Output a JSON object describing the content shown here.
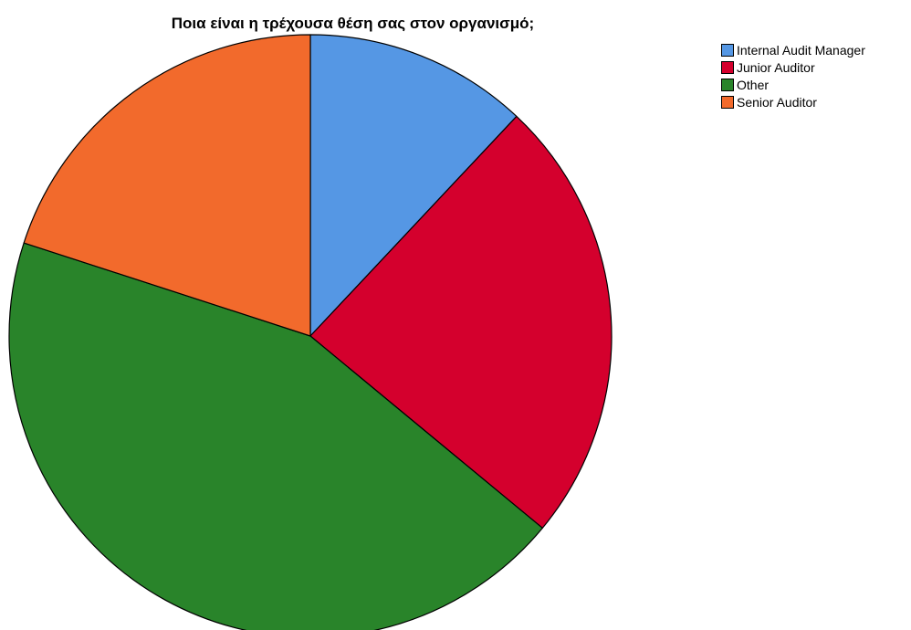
{
  "chart_data": {
    "type": "pie",
    "title": "Ποια είναι η τρέχουσα θέση σας στον οργανισμό;",
    "categories": [
      "Internal Audit Manager",
      "Junior Auditor",
      "Other",
      "Senior Auditor"
    ],
    "values": [
      12,
      24,
      44,
      20
    ],
    "colors": [
      "#5597e4",
      "#d4002d",
      "#29842a",
      "#f26a2c"
    ],
    "legend_position": "right",
    "start": "top",
    "direction": "clockwise"
  }
}
